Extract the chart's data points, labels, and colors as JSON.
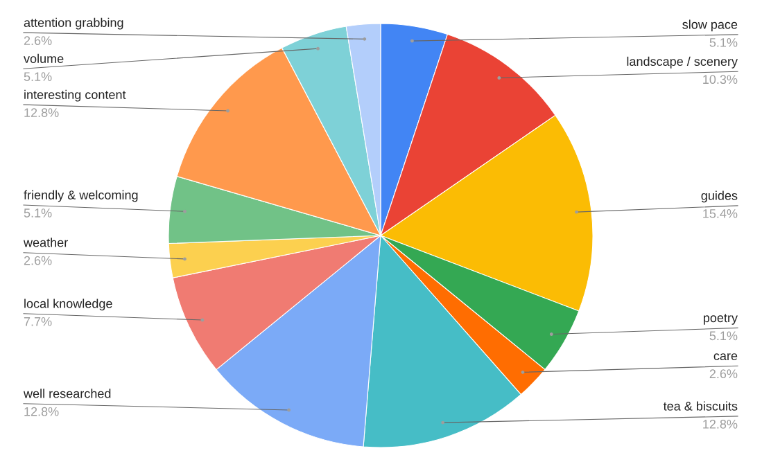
{
  "chart_data": {
    "type": "pie",
    "categories": [
      "slow pace",
      "landscape / scenery",
      "guides",
      "poetry",
      "care",
      "tea & biscuits",
      "well researched",
      "local knowledge",
      "weather",
      "friendly & welcoming",
      "interesting content",
      "volume",
      "attention grabbing"
    ],
    "values": [
      5.1,
      10.3,
      15.4,
      5.1,
      2.6,
      12.8,
      12.8,
      7.7,
      2.6,
      5.1,
      12.8,
      5.1,
      2.6
    ],
    "colors": [
      "#4285f4",
      "#ea4335",
      "#fbbc04",
      "#34a853",
      "#ff6d01",
      "#46bdc6",
      "#7baaf7",
      "#f07b72",
      "#fcd04f",
      "#71c287",
      "#ff994d",
      "#7ed1d7",
      "#b3cefb"
    ],
    "value_labels": [
      "5.1%",
      "10.3%",
      "15.4%",
      "5.1%",
      "2.6%",
      "12.8%",
      "12.8%",
      "7.7%",
      "2.6%",
      "5.1%",
      "12.8%",
      "5.1%",
      "2.6%"
    ]
  }
}
